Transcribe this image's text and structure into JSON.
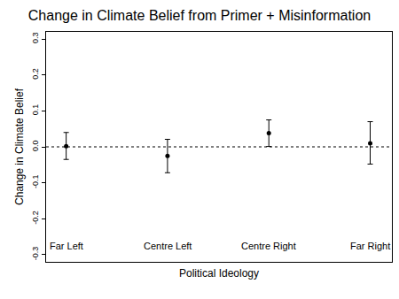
{
  "chart_data": {
    "type": "scatter",
    "title": "Change in Climate Belief from Primer + Misinformation",
    "x_label": "Political Ideology",
    "y_label": "Change in Climate Belief",
    "categories": [
      "Far Left",
      "Centre Left",
      "Centre Right",
      "Far Right"
    ],
    "values": [
      0.002,
      -0.025,
      0.038,
      0.01
    ],
    "error_plus": [
      0.038,
      0.046,
      0.037,
      0.06
    ],
    "error_minus": [
      0.037,
      0.047,
      0.037,
      0.058
    ],
    "ylim": [
      -0.32,
      0.32
    ],
    "yticks": [
      {
        "value": -0.3,
        "label": "-0.3"
      },
      {
        "value": -0.2,
        "label": "-0.2"
      },
      {
        "value": -0.1,
        "label": "-0.1"
      },
      {
        "value": 0,
        "label": "0.0"
      },
      0.1,
      0.2,
      0.3
    ],
    "reference_line": 0,
    "color": "#000000",
    "marker": "circle",
    "tick_labels": "y",
    "grid": false
  }
}
